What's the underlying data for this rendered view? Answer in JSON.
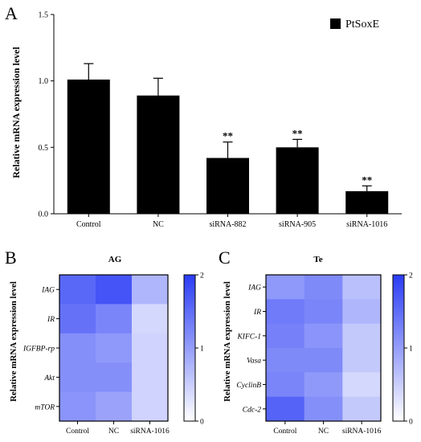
{
  "colors": {
    "bar": "#000000",
    "heat_low": "#ffffff",
    "heat_high": "#2a3cf5"
  },
  "panels": {
    "a": {
      "letter": "A"
    },
    "b": {
      "letter": "B"
    },
    "c": {
      "letter": "C"
    }
  },
  "chart_data": [
    {
      "type": "bar",
      "title": "",
      "ylabel": "Relative mRNA expression level",
      "xlabel": "",
      "categories": [
        "Control",
        "NC",
        "siRNA-882",
        "siRNA-905",
        "siRNA-1016"
      ],
      "series": [
        {
          "name": "PtSoxE",
          "values": [
            1.01,
            0.89,
            0.42,
            0.5,
            0.17
          ],
          "errors": [
            0.12,
            0.13,
            0.12,
            0.06,
            0.04
          ]
        }
      ],
      "significance": [
        "",
        "",
        "**",
        "**",
        "**"
      ],
      "ylim": [
        0,
        1.5
      ],
      "yticks": [
        "0.0",
        "0.5",
        "1.0",
        "1.5"
      ],
      "legend": "top-right",
      "grid": false
    },
    {
      "type": "heatmap",
      "title": "AG",
      "ylabel": "Relative mRNA expression level",
      "columns": [
        "Control",
        "NC",
        "siRNA-1016"
      ],
      "rows": [
        "IAG",
        "IR",
        "IGFBP-rp",
        "Akt",
        "mTOR"
      ],
      "values": [
        [
          1.55,
          1.75,
          0.75
        ],
        [
          1.45,
          1.25,
          0.4
        ],
        [
          1.15,
          1.05,
          0.45
        ],
        [
          1.15,
          1.15,
          0.45
        ],
        [
          1.1,
          0.95,
          0.45
        ]
      ],
      "colorbar": {
        "min": 0,
        "max": 2,
        "ticks": [
          "0",
          "1",
          "2"
        ]
      }
    },
    {
      "type": "heatmap",
      "title": "Te",
      "ylabel": "Relative mRNA expression level",
      "columns": [
        "Control",
        "NC",
        "siRNA-1016"
      ],
      "rows": [
        "IAG",
        "IR",
        "KIFC-1",
        "Vasa",
        "CyclinB",
        "Cdc-2"
      ],
      "values": [
        [
          1.05,
          1.2,
          0.65
        ],
        [
          1.35,
          1.25,
          0.75
        ],
        [
          1.3,
          1.1,
          0.55
        ],
        [
          1.2,
          1.2,
          0.55
        ],
        [
          1.25,
          1.05,
          0.4
        ],
        [
          1.6,
          1.15,
          0.55
        ]
      ],
      "colorbar": {
        "min": 0,
        "max": 2,
        "ticks": [
          "0",
          "1",
          "2"
        ]
      }
    }
  ]
}
